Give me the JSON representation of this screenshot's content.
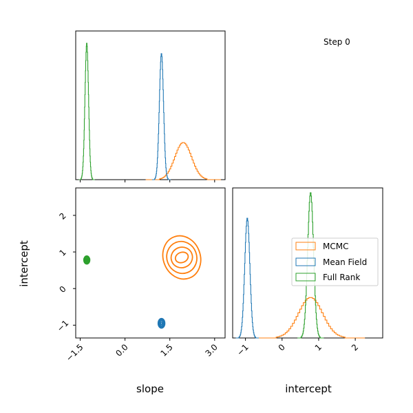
{
  "annotation": "Step 0",
  "chart_data": {
    "type": "corner",
    "variables": [
      "slope",
      "intercept"
    ],
    "xlabels": {
      "bottom_left": "slope",
      "bottom_right": "intercept"
    },
    "ylabel": "intercept",
    "slope_axis": {
      "range": [
        -1.65,
        3.35
      ],
      "ticks": [
        -1.5,
        0.0,
        1.5,
        3.0
      ],
      "tick_labels": [
        "−1.5",
        "0.0",
        "1.5",
        "3.0"
      ]
    },
    "intercept_axis": {
      "range": [
        -1.35,
        2.75
      ],
      "ticks": [
        -1,
        0,
        1,
        2
      ],
      "tick_labels": [
        "−1",
        "0",
        "1",
        "2"
      ]
    },
    "legend": {
      "placement": "right",
      "entries": [
        "MCMC",
        "Mean Field",
        "Full Rank"
      ]
    },
    "series": [
      {
        "name": "MCMC",
        "color": "#ff7f0e",
        "slope": {
          "mean": 1.95,
          "sd": 0.28,
          "peak": 0.25
        },
        "intercept": {
          "mean": 0.78,
          "sd": 0.33,
          "peak": 0.27
        },
        "contour": {
          "cx": 1.9,
          "cy": 0.85,
          "rx": [
            0.22,
            0.36,
            0.5,
            0.62
          ],
          "ry": [
            0.14,
            0.28,
            0.44,
            0.6
          ],
          "tilt": 0.35
        }
      },
      {
        "name": "Mean Field",
        "color": "#1f77b4",
        "slope": {
          "mean": 1.22,
          "sd": 0.07,
          "peak": 0.85
        },
        "intercept": {
          "mean": -0.95,
          "sd": 0.07,
          "peak": 0.8
        },
        "contour": {
          "cx": 1.22,
          "cy": -0.95,
          "rx": [
            0.03,
            0.06,
            0.09,
            0.11
          ],
          "ry": [
            0.03,
            0.07,
            0.1,
            0.13
          ],
          "tilt": 0
        }
      },
      {
        "name": "Full Rank",
        "color": "#2ca02c",
        "slope": {
          "mean": -1.28,
          "sd": 0.06,
          "peak": 0.92
        },
        "intercept": {
          "mean": 0.78,
          "sd": 0.08,
          "peak": 0.97
        },
        "contour": {
          "cx": -1.28,
          "cy": 0.78,
          "rx": [
            0.02,
            0.05,
            0.08,
            0.1
          ],
          "ry": [
            0.02,
            0.05,
            0.08,
            0.11
          ],
          "tilt": 0
        }
      }
    ]
  }
}
